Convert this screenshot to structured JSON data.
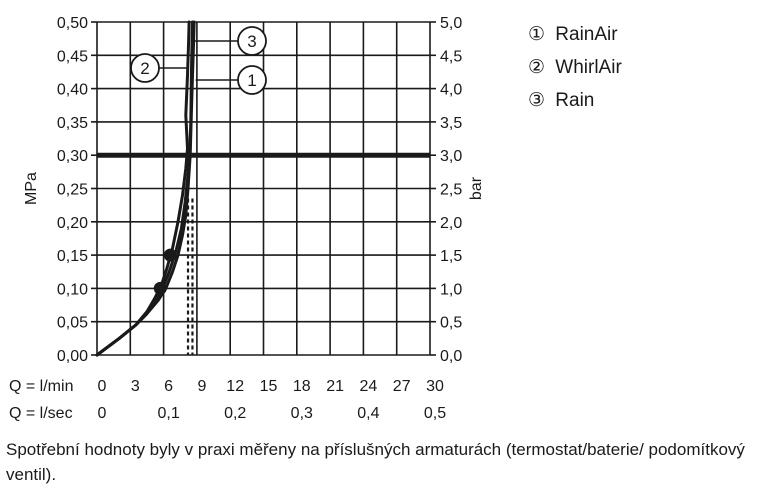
{
  "chart_data": {
    "type": "line",
    "left_axis": {
      "label": "MPa",
      "range": [
        0,
        0.5
      ],
      "ticks": [
        "0,00",
        "0,05",
        "0,10",
        "0,15",
        "0,20",
        "0,25",
        "0,30",
        "0,35",
        "0,40",
        "0,45",
        "0,50"
      ]
    },
    "right_axis": {
      "label": "bar",
      "range": [
        0,
        5
      ],
      "ticks": [
        "0,0",
        "0,5",
        "1,0",
        "1,5",
        "2,0",
        "2,5",
        "3,0",
        "3,5",
        "4,0",
        "4,5",
        "5,0"
      ]
    },
    "x_axis": {
      "range": [
        0,
        30
      ],
      "row1_label": "Q = l/min",
      "row1_ticks": [
        "0",
        "3",
        "6",
        "9",
        "12",
        "15",
        "18",
        "21",
        "24",
        "27",
        "30"
      ],
      "row2_label": "Q = l/sec",
      "row2_ticks": [
        "0",
        "0,1",
        "0,2",
        "0,3",
        "0,4",
        "0,5"
      ],
      "row2_values": [
        0,
        6,
        12,
        18,
        24,
        30
      ]
    },
    "grid": true,
    "reference_line_mpa": 0.3,
    "series": [
      {
        "name": "RainAir",
        "callout": "1",
        "x": [
          0,
          2,
          3.5,
          4.5,
          5.5,
          6.2,
          6.8,
          7.3,
          7.7,
          8.0,
          8.2,
          8.4,
          8.5,
          8.6,
          8.7,
          8.75
        ],
        "y": [
          0,
          0.025,
          0.045,
          0.062,
          0.082,
          0.1,
          0.125,
          0.15,
          0.18,
          0.21,
          0.25,
          0.3,
          0.36,
          0.42,
          0.47,
          0.5
        ]
      },
      {
        "name": "WhirlAir",
        "callout": "2",
        "x": [
          0,
          2,
          3.5,
          4.5,
          5.2,
          5.8,
          6.3,
          6.8,
          7.3,
          7.7,
          8.0,
          8.15,
          8.0,
          8.15,
          8.25,
          8.3
        ],
        "y": [
          0,
          0.025,
          0.045,
          0.065,
          0.085,
          0.105,
          0.13,
          0.16,
          0.2,
          0.24,
          0.28,
          0.31,
          0.36,
          0.42,
          0.47,
          0.5
        ]
      },
      {
        "name": "Rain",
        "callout": "3",
        "x": [
          0,
          2,
          3.5,
          4.5,
          5.3,
          5.9,
          6.5,
          7.1,
          7.6,
          7.95,
          8.2,
          8.35,
          8.45,
          8.5,
          8.55,
          8.6
        ],
        "y": [
          0,
          0.025,
          0.045,
          0.062,
          0.082,
          0.1,
          0.125,
          0.155,
          0.19,
          0.23,
          0.27,
          0.3,
          0.35,
          0.41,
          0.46,
          0.5
        ]
      }
    ],
    "markers": [
      {
        "x": 5.7,
        "y": 0.1
      },
      {
        "x": 6.6,
        "y": 0.15
      }
    ],
    "dashed_lines_x": [
      8.2,
      8.6
    ]
  },
  "legend": [
    {
      "symbol": "①",
      "label": "RainAir"
    },
    {
      "symbol": "②",
      "label": "WhirlAir"
    },
    {
      "symbol": "③",
      "label": "Rain"
    }
  ],
  "caption": "Spotřební hodnoty byly v praxi měřeny na příslušných armaturách (termostat/baterie/ podomítkový ventil)."
}
